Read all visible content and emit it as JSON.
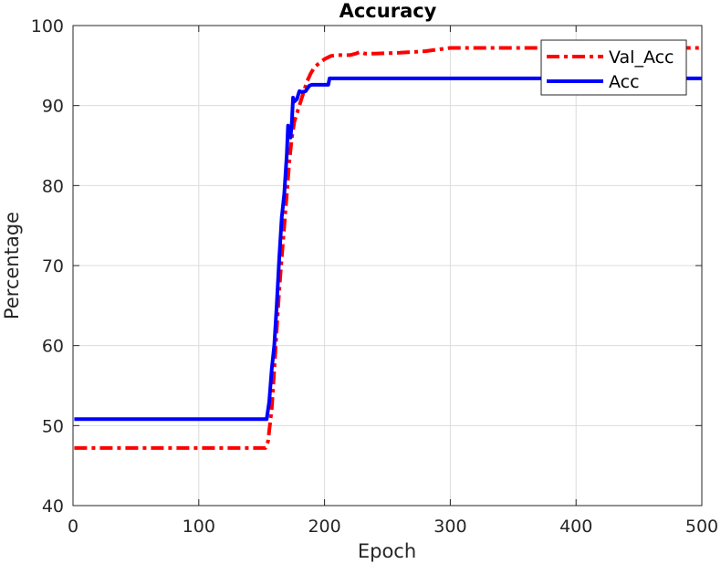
{
  "chart_data": {
    "type": "line",
    "title": "Accuracy",
    "xlabel": "Epoch",
    "ylabel": "Percentage",
    "xlim": [
      0,
      500
    ],
    "ylim": [
      40,
      100
    ],
    "xticks": [
      0,
      100,
      200,
      300,
      400,
      500
    ],
    "yticks": [
      40,
      50,
      60,
      70,
      80,
      90,
      100
    ],
    "grid": true,
    "legend_position": "top-right",
    "series": [
      {
        "name": "Val_Acc",
        "color": "#ff0000",
        "style": "dash-dot",
        "x": [
          1,
          153,
          155,
          158,
          160,
          162,
          164,
          166,
          168,
          170,
          172,
          174,
          176,
          178,
          180,
          183,
          186,
          189,
          192,
          195,
          200,
          205,
          210,
          220,
          225,
          228,
          232,
          240,
          260,
          280,
          290,
          300,
          350,
          400,
          450,
          500
        ],
        "y": [
          47.2,
          47.2,
          48.0,
          52.0,
          57.0,
          62.0,
          67.0,
          71.0,
          75.0,
          79.0,
          83.0,
          86.0,
          88.0,
          89.0,
          90.0,
          91.5,
          93.0,
          94.0,
          94.8,
          95.2,
          95.8,
          96.2,
          96.3,
          96.3,
          96.5,
          96.7,
          96.5,
          96.5,
          96.6,
          96.8,
          97.0,
          97.2,
          97.2,
          97.2,
          97.2,
          97.2
        ]
      },
      {
        "name": "Acc",
        "color": "#0000ff",
        "style": "solid",
        "x": [
          1,
          154,
          156,
          158,
          160,
          162,
          164,
          166,
          168,
          170,
          171,
          172,
          173,
          174,
          175,
          176,
          178,
          180,
          182,
          185,
          188,
          190,
          195,
          200,
          203,
          204,
          206,
          250,
          300,
          350,
          400,
          450,
          500
        ],
        "y": [
          50.8,
          50.8,
          53.0,
          57.0,
          60.0,
          65.0,
          71.0,
          76.0,
          79.0,
          84.0,
          87.5,
          87.0,
          86.0,
          88.0,
          91.0,
          90.5,
          90.8,
          91.8,
          91.7,
          91.8,
          92.5,
          92.6,
          92.6,
          92.6,
          92.6,
          93.4,
          93.4,
          93.4,
          93.4,
          93.4,
          93.4,
          93.4,
          93.4
        ]
      }
    ]
  }
}
